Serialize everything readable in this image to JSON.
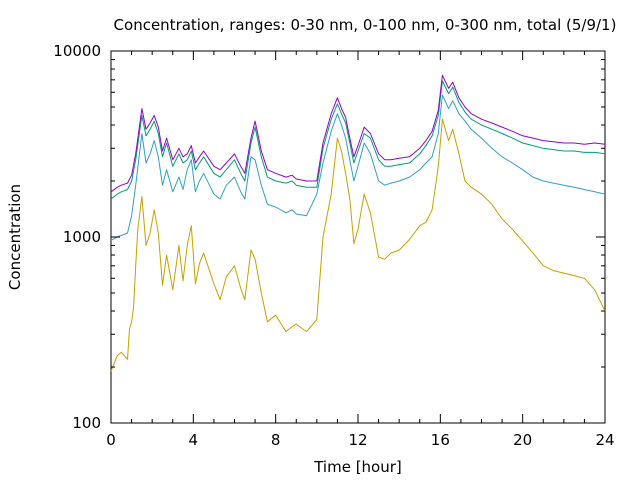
{
  "chart_data": {
    "type": "line",
    "title": "Concentration, ranges: 0-30 nm, 0-100 nm, 0-300 nm, total (5/9/1)",
    "xlabel": "Time [hour]",
    "ylabel": "Concentration",
    "xlim": [
      0,
      24
    ],
    "ylim": [
      100,
      10000
    ],
    "yscale": "log",
    "grid": false,
    "legend": "none",
    "x_ticks": [
      "0",
      "4",
      "8",
      "12",
      "16",
      "20",
      "24"
    ],
    "y_ticks": [
      "100",
      "1000",
      "10000"
    ],
    "series": [
      {
        "color": "#c8a000",
        "x": [
          0,
          0.3,
          0.5,
          0.8,
          0.9,
          1.0,
          1.1,
          1.2,
          1.3,
          1.5,
          1.7,
          1.9,
          2.1,
          2.3,
          2.5,
          2.7,
          3.0,
          3.3,
          3.5,
          3.7,
          3.9,
          4.1,
          4.3,
          4.5,
          5.0,
          5.3,
          5.6,
          6.0,
          6.3,
          6.5,
          6.8,
          7.0,
          7.3,
          7.6,
          8.0,
          8.5,
          8.8,
          9.0,
          9.5,
          10.0,
          10.3,
          10.7,
          11.0,
          11.2,
          11.4,
          11.6,
          11.8,
          12.0,
          12.3,
          12.6,
          13.0,
          13.3,
          13.6,
          14.0,
          14.5,
          15.0,
          15.3,
          15.6,
          15.9,
          16.1,
          16.4,
          16.6,
          16.9,
          17.2,
          17.5,
          18.0,
          18.5,
          19.0,
          19.5,
          20.0,
          20.5,
          21.0,
          21.5,
          22.0,
          22.5,
          23.0,
          23.5,
          24.0
        ],
        "values": [
          190,
          230,
          240,
          220,
          320,
          350,
          420,
          700,
          1100,
          1650,
          900,
          1050,
          1400,
          1050,
          550,
          800,
          520,
          900,
          580,
          900,
          1150,
          560,
          720,
          820,
          560,
          460,
          610,
          700,
          530,
          460,
          850,
          760,
          500,
          350,
          380,
          310,
          330,
          340,
          310,
          360,
          1000,
          1700,
          3400,
          2900,
          2200,
          1600,
          920,
          1100,
          1700,
          1350,
          780,
          760,
          820,
          850,
          970,
          1150,
          1200,
          1400,
          2400,
          4300,
          3300,
          3800,
          2800,
          2000,
          1850,
          1700,
          1500,
          1250,
          1100,
          950,
          820,
          700,
          660,
          640,
          620,
          600,
          520,
          400
        ]
      },
      {
        "color": "#30a0c8",
        "x": [
          0,
          0.3,
          0.5,
          0.8,
          1.0,
          1.2,
          1.5,
          1.7,
          1.9,
          2.1,
          2.3,
          2.5,
          2.7,
          3.0,
          3.3,
          3.5,
          3.7,
          3.9,
          4.1,
          4.3,
          4.5,
          5.0,
          5.3,
          5.6,
          6.0,
          6.3,
          6.5,
          6.8,
          7.0,
          7.3,
          7.6,
          8.0,
          8.5,
          8.8,
          9.0,
          9.5,
          10.0,
          10.3,
          10.7,
          11.0,
          11.2,
          11.4,
          11.6,
          11.8,
          12.0,
          12.3,
          12.6,
          13.0,
          13.3,
          13.6,
          14.0,
          14.5,
          15.0,
          15.3,
          15.6,
          15.9,
          16.1,
          16.4,
          16.6,
          16.9,
          17.2,
          17.5,
          18.0,
          18.5,
          19.0,
          19.5,
          20.0,
          20.5,
          21.0,
          21.5,
          22.0,
          22.5,
          23.0,
          23.5,
          24.0
        ],
        "values": [
          960,
          1000,
          1020,
          1050,
          1300,
          1900,
          3600,
          2500,
          2800,
          3300,
          2700,
          1900,
          2300,
          1750,
          2100,
          1800,
          2300,
          2600,
          1750,
          2000,
          2200,
          1700,
          1600,
          1900,
          2100,
          1750,
          1600,
          2700,
          2600,
          1900,
          1500,
          1450,
          1350,
          1400,
          1330,
          1300,
          1700,
          2500,
          3700,
          4600,
          4000,
          3400,
          2600,
          2000,
          2400,
          3200,
          2800,
          2000,
          1900,
          1950,
          2000,
          2100,
          2300,
          2500,
          2700,
          3600,
          5800,
          4900,
          5400,
          4600,
          4200,
          3800,
          3400,
          3000,
          2700,
          2500,
          2300,
          2100,
          2000,
          1950,
          1900,
          1850,
          1800,
          1750,
          1700
        ]
      },
      {
        "color": "#009e73",
        "x": [
          0,
          0.3,
          0.5,
          0.8,
          1.0,
          1.2,
          1.5,
          1.7,
          1.9,
          2.1,
          2.3,
          2.5,
          2.7,
          3.0,
          3.3,
          3.5,
          3.7,
          3.9,
          4.1,
          4.3,
          4.5,
          5.0,
          5.3,
          5.6,
          6.0,
          6.3,
          6.5,
          6.8,
          7.0,
          7.3,
          7.6,
          8.0,
          8.5,
          8.8,
          9.0,
          9.5,
          10.0,
          10.3,
          10.7,
          11.0,
          11.2,
          11.4,
          11.6,
          11.8,
          12.0,
          12.3,
          12.6,
          13.0,
          13.3,
          13.6,
          14.0,
          14.5,
          15.0,
          15.3,
          15.6,
          15.9,
          16.1,
          16.4,
          16.6,
          16.9,
          17.2,
          17.5,
          18.0,
          18.5,
          19.0,
          19.5,
          20.0,
          20.5,
          21.0,
          21.5,
          22.0,
          22.5,
          23.0,
          23.5,
          24.0
        ],
        "values": [
          1600,
          1700,
          1750,
          1800,
          2000,
          2600,
          4500,
          3500,
          3800,
          4200,
          3600,
          2700,
          3200,
          2400,
          2800,
          2500,
          2600,
          2900,
          2300,
          2500,
          2700,
          2200,
          2100,
          2300,
          2600,
          2200,
          2000,
          3200,
          3900,
          2700,
          2100,
          2000,
          1950,
          2000,
          1900,
          1850,
          1850,
          3000,
          4300,
          5200,
          4600,
          4100,
          3200,
          2500,
          2900,
          3600,
          3400,
          2600,
          2400,
          2400,
          2450,
          2500,
          2800,
          3100,
          3500,
          4500,
          6900,
          5900,
          6400,
          5300,
          4700,
          4300,
          4000,
          3800,
          3600,
          3400,
          3200,
          3100,
          3000,
          2950,
          2900,
          2900,
          2850,
          2850,
          2800
        ]
      },
      {
        "color": "#9400d3",
        "x": [
          0,
          0.3,
          0.5,
          0.8,
          1.0,
          1.2,
          1.5,
          1.7,
          1.9,
          2.1,
          2.3,
          2.5,
          2.7,
          3.0,
          3.3,
          3.5,
          3.7,
          3.9,
          4.1,
          4.3,
          4.5,
          5.0,
          5.3,
          5.6,
          6.0,
          6.3,
          6.5,
          6.8,
          7.0,
          7.3,
          7.6,
          8.0,
          8.5,
          8.8,
          9.0,
          9.5,
          10.0,
          10.3,
          10.7,
          11.0,
          11.2,
          11.4,
          11.6,
          11.8,
          12.0,
          12.3,
          12.6,
          13.0,
          13.3,
          13.6,
          14.0,
          14.5,
          15.0,
          15.3,
          15.6,
          15.9,
          16.1,
          16.4,
          16.6,
          16.9,
          17.2,
          17.5,
          18.0,
          18.5,
          19.0,
          19.5,
          20.0,
          20.5,
          21.0,
          21.5,
          22.0,
          22.5,
          23.0,
          23.5,
          24.0
        ],
        "values": [
          1750,
          1850,
          1900,
          1950,
          2150,
          2800,
          4900,
          3800,
          4100,
          4500,
          3900,
          2900,
          3400,
          2600,
          3000,
          2700,
          2800,
          3100,
          2500,
          2700,
          2900,
          2400,
          2300,
          2500,
          2800,
          2400,
          2200,
          3400,
          4200,
          2900,
          2300,
          2200,
          2100,
          2150,
          2050,
          2000,
          2000,
          3200,
          4600,
          5600,
          4900,
          4400,
          3400,
          2700,
          3100,
          3900,
          3600,
          2800,
          2600,
          2600,
          2650,
          2700,
          3000,
          3300,
          3700,
          4800,
          7400,
          6300,
          6800,
          5600,
          5000,
          4600,
          4300,
          4100,
          3900,
          3700,
          3500,
          3400,
          3300,
          3250,
          3200,
          3200,
          3150,
          3200,
          3150
        ]
      }
    ]
  }
}
